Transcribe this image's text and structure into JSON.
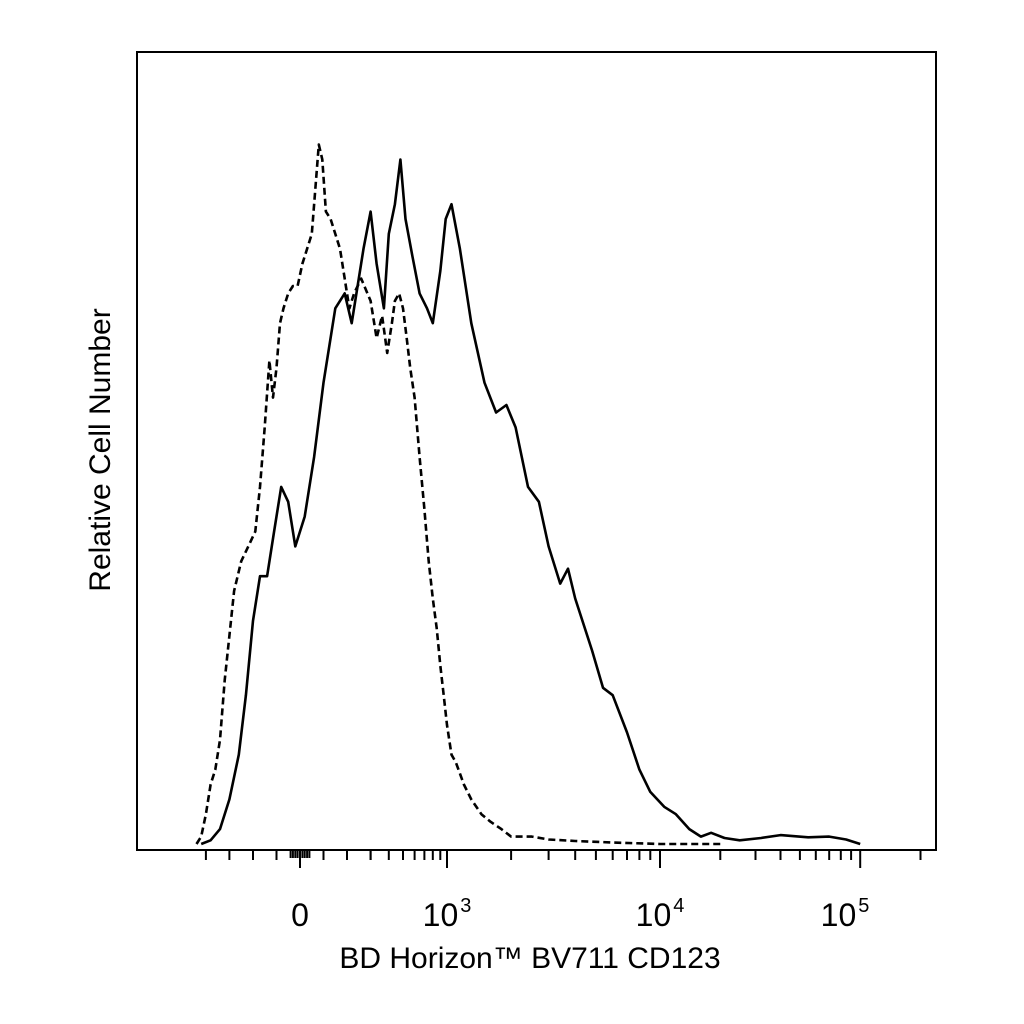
{
  "chart_data": {
    "type": "line",
    "title": "",
    "xlabel": "BD Horizon™ BV711 CD123",
    "ylabel": "Relative Cell Number",
    "x_scale": "biexponential",
    "x_ticks": [
      {
        "base": "0",
        "exp": ""
      },
      {
        "base": "10",
        "exp": "3"
      },
      {
        "base": "10",
        "exp": "4"
      },
      {
        "base": "10",
        "exp": "5"
      }
    ],
    "x_tick_values": [
      0,
      1000,
      10000,
      100000
    ],
    "xlim": [
      -450,
      250000
    ],
    "ylim": [
      0,
      100
    ],
    "grid": false,
    "legend": "none",
    "series": [
      {
        "style": "solid",
        "color": "#000000",
        "points": [
          [
            -420,
            0
          ],
          [
            -380,
            0.5
          ],
          [
            -340,
            2
          ],
          [
            -300,
            6
          ],
          [
            -260,
            12
          ],
          [
            -230,
            20
          ],
          [
            -200,
            30
          ],
          [
            -170,
            36
          ],
          [
            -140,
            36
          ],
          [
            -110,
            42
          ],
          [
            -80,
            48
          ],
          [
            -50,
            46
          ],
          [
            -20,
            40
          ],
          [
            20,
            44
          ],
          [
            60,
            52
          ],
          [
            100,
            62
          ],
          [
            150,
            72
          ],
          [
            190,
            74
          ],
          [
            220,
            70
          ],
          [
            270,
            80
          ],
          [
            300,
            85
          ],
          [
            330,
            78
          ],
          [
            370,
            72
          ],
          [
            400,
            82
          ],
          [
            440,
            86
          ],
          [
            480,
            92
          ],
          [
            520,
            84
          ],
          [
            580,
            79
          ],
          [
            650,
            74
          ],
          [
            730,
            72
          ],
          [
            800,
            70
          ],
          [
            900,
            77
          ],
          [
            980,
            84
          ],
          [
            1050,
            86
          ],
          [
            1150,
            80
          ],
          [
            1300,
            70
          ],
          [
            1500,
            62
          ],
          [
            1700,
            58
          ],
          [
            1900,
            59
          ],
          [
            2100,
            56
          ],
          [
            2400,
            48
          ],
          [
            2700,
            46
          ],
          [
            3000,
            40
          ],
          [
            3400,
            35
          ],
          [
            3700,
            37
          ],
          [
            4000,
            33
          ],
          [
            4800,
            26
          ],
          [
            5400,
            21
          ],
          [
            6000,
            20
          ],
          [
            7000,
            15
          ],
          [
            8000,
            10
          ],
          [
            9000,
            7
          ],
          [
            10500,
            5
          ],
          [
            12000,
            4
          ],
          [
            14000,
            2
          ],
          [
            16000,
            1
          ],
          [
            18000,
            1.5
          ],
          [
            21000,
            0.8
          ],
          [
            25000,
            0.5
          ],
          [
            32000,
            0.8
          ],
          [
            40000,
            1.2
          ],
          [
            55000,
            0.9
          ],
          [
            70000,
            1
          ],
          [
            85000,
            0.6
          ],
          [
            100000,
            0
          ]
        ]
      },
      {
        "style": "dashed",
        "color": "#000000",
        "points": [
          [
            -440,
            0
          ],
          [
            -420,
            1
          ],
          [
            -400,
            4
          ],
          [
            -380,
            8
          ],
          [
            -360,
            10
          ],
          [
            -340,
            14
          ],
          [
            -320,
            22
          ],
          [
            -300,
            28
          ],
          [
            -280,
            34
          ],
          [
            -250,
            38
          ],
          [
            -220,
            40
          ],
          [
            -190,
            42
          ],
          [
            -170,
            48
          ],
          [
            -150,
            56
          ],
          [
            -130,
            65
          ],
          [
            -115,
            60
          ],
          [
            -100,
            64
          ],
          [
            -85,
            70
          ],
          [
            -70,
            72
          ],
          [
            -50,
            74
          ],
          [
            -30,
            75
          ],
          [
            -10,
            75
          ],
          [
            10,
            78
          ],
          [
            30,
            80
          ],
          [
            50,
            82
          ],
          [
            65,
            88
          ],
          [
            80,
            94
          ],
          [
            95,
            92
          ],
          [
            110,
            85
          ],
          [
            130,
            84
          ],
          [
            150,
            82
          ],
          [
            170,
            80
          ],
          [
            190,
            76
          ],
          [
            200,
            74
          ],
          [
            210,
            72
          ],
          [
            230,
            74
          ],
          [
            260,
            76
          ],
          [
            300,
            73
          ],
          [
            330,
            68
          ],
          [
            360,
            71
          ],
          [
            390,
            66
          ],
          [
            420,
            70
          ],
          [
            440,
            73
          ],
          [
            470,
            74
          ],
          [
            500,
            72
          ],
          [
            530,
            68
          ],
          [
            560,
            64
          ],
          [
            600,
            60
          ],
          [
            650,
            52
          ],
          [
            700,
            45
          ],
          [
            750,
            38
          ],
          [
            800,
            33
          ],
          [
            850,
            29
          ],
          [
            900,
            24
          ],
          [
            950,
            20
          ],
          [
            1000,
            16
          ],
          [
            1050,
            12
          ],
          [
            1100,
            11
          ],
          [
            1200,
            8
          ],
          [
            1300,
            6
          ],
          [
            1450,
            4
          ],
          [
            1600,
            3
          ],
          [
            1800,
            2
          ],
          [
            2000,
            1
          ],
          [
            2500,
            1
          ],
          [
            3000,
            0.6
          ],
          [
            4000,
            0.4
          ],
          [
            6000,
            0.2
          ],
          [
            10000,
            0
          ],
          [
            20000,
            0
          ]
        ]
      }
    ]
  }
}
